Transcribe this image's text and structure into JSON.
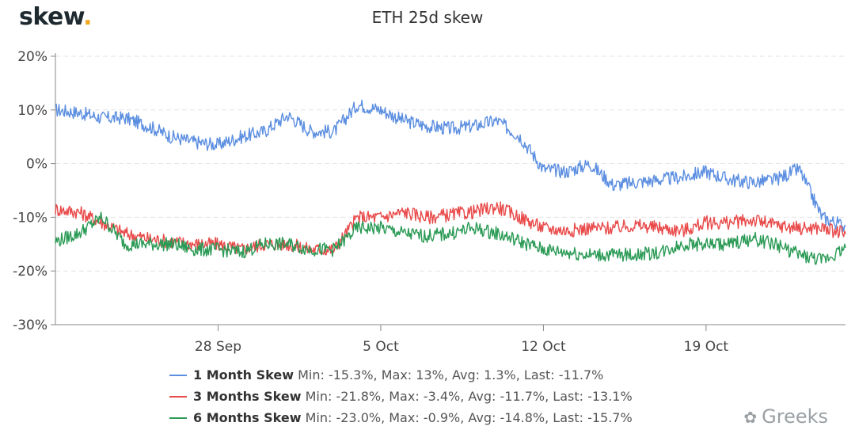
{
  "brand": {
    "name": "skew",
    "dot": "."
  },
  "watermark": {
    "text": "Greeks",
    "icon": "wechat-icon"
  },
  "chart_data": {
    "type": "line",
    "title": "ETH 25d skew",
    "xlabel": "",
    "ylabel": "",
    "ylim": [
      -30,
      20
    ],
    "yticks": [
      20,
      10,
      0,
      -10,
      -20,
      -30
    ],
    "ytick_labels": [
      "20%",
      "10%",
      "0%",
      "-10%",
      "-20%",
      "-30%"
    ],
    "xlim": [
      "2020-09-21",
      "2020-10-25"
    ],
    "xticks": [
      "2020-09-28",
      "2020-10-05",
      "2020-10-12",
      "2020-10-19"
    ],
    "xtick_labels": [
      "28 Sep",
      "5 Oct",
      "12 Oct",
      "19 Oct"
    ],
    "grid": true,
    "legend_position": "bottom",
    "series": [
      {
        "name": "1 Month Skew",
        "stats": "Min: -15.3%, Max: 13%, Avg: 1.3%, Last: -11.7%",
        "color": "#5b8ee0",
        "points": [
          [
            "2020-09-21",
            10
          ],
          [
            "2020-09-22",
            9.5
          ],
          [
            "2020-09-23",
            8.5
          ],
          [
            "2020-09-24",
            8.5
          ],
          [
            "2020-09-25",
            7
          ],
          [
            "2020-09-26",
            5
          ],
          [
            "2020-09-27",
            4
          ],
          [
            "2020-09-28",
            3.5
          ],
          [
            "2020-09-29",
            5
          ],
          [
            "2020-09-30",
            6
          ],
          [
            "2020-10-01",
            9
          ],
          [
            "2020-10-02",
            6
          ],
          [
            "2020-10-03",
            6
          ],
          [
            "2020-10-04",
            11
          ],
          [
            "2020-10-05",
            10
          ],
          [
            "2020-10-06",
            8
          ],
          [
            "2020-10-07",
            7
          ],
          [
            "2020-10-08",
            6.5
          ],
          [
            "2020-10-09",
            7
          ],
          [
            "2020-10-10",
            8
          ],
          [
            "2020-10-11",
            5
          ],
          [
            "2020-10-12",
            -1
          ],
          [
            "2020-10-13",
            -1.5
          ],
          [
            "2020-10-14",
            0
          ],
          [
            "2020-10-15",
            -4
          ],
          [
            "2020-10-16",
            -3.5
          ],
          [
            "2020-10-17",
            -3
          ],
          [
            "2020-10-18",
            -2.5
          ],
          [
            "2020-10-19",
            -1.5
          ],
          [
            "2020-10-20",
            -3
          ],
          [
            "2020-10-21",
            -3.5
          ],
          [
            "2020-10-22",
            -3
          ],
          [
            "2020-10-23",
            -1
          ],
          [
            "2020-10-24",
            -10
          ],
          [
            "2020-10-25",
            -11.7
          ]
        ]
      },
      {
        "name": "3 Months Skew",
        "stats": "Min: -21.8%, Max: -3.4%, Avg: -11.7%, Last: -13.1%",
        "color": "#e94a4a",
        "points": [
          [
            "2020-09-21",
            -8.5
          ],
          [
            "2020-09-22",
            -9
          ],
          [
            "2020-09-23",
            -11
          ],
          [
            "2020-09-24",
            -13
          ],
          [
            "2020-09-25",
            -14
          ],
          [
            "2020-09-26",
            -14.5
          ],
          [
            "2020-09-27",
            -15
          ],
          [
            "2020-09-28",
            -15
          ],
          [
            "2020-09-29",
            -16
          ],
          [
            "2020-09-30",
            -15
          ],
          [
            "2020-10-01",
            -15
          ],
          [
            "2020-10-02",
            -16
          ],
          [
            "2020-10-03",
            -16
          ],
          [
            "2020-10-04",
            -10
          ],
          [
            "2020-10-05",
            -10
          ],
          [
            "2020-10-06",
            -9
          ],
          [
            "2020-10-07",
            -10
          ],
          [
            "2020-10-08",
            -9.5
          ],
          [
            "2020-10-09",
            -9
          ],
          [
            "2020-10-10",
            -8
          ],
          [
            "2020-10-11",
            -10
          ],
          [
            "2020-10-12",
            -12
          ],
          [
            "2020-10-13",
            -12.5
          ],
          [
            "2020-10-14",
            -12
          ],
          [
            "2020-10-15",
            -12
          ],
          [
            "2020-10-16",
            -11.5
          ],
          [
            "2020-10-17",
            -12
          ],
          [
            "2020-10-18",
            -12.5
          ],
          [
            "2020-10-19",
            -11
          ],
          [
            "2020-10-20",
            -11
          ],
          [
            "2020-10-21",
            -10.5
          ],
          [
            "2020-10-22",
            -11.5
          ],
          [
            "2020-10-23",
            -12
          ],
          [
            "2020-10-24",
            -12
          ],
          [
            "2020-10-25",
            -13.1
          ]
        ]
      },
      {
        "name": "6 Months Skew",
        "stats": "Min: -23.0%, Max: -0.9%, Avg: -14.8%, Last: -15.7%",
        "color": "#2a9a55",
        "points": [
          [
            "2020-09-21",
            -14.5
          ],
          [
            "2020-09-22",
            -13
          ],
          [
            "2020-09-23",
            -10
          ],
          [
            "2020-09-24",
            -15
          ],
          [
            "2020-09-25",
            -15
          ],
          [
            "2020-09-26",
            -15
          ],
          [
            "2020-09-27",
            -16
          ],
          [
            "2020-09-28",
            -16
          ],
          [
            "2020-09-29",
            -16.5
          ],
          [
            "2020-09-30",
            -15
          ],
          [
            "2020-10-01",
            -15
          ],
          [
            "2020-10-02",
            -16
          ],
          [
            "2020-10-03",
            -16
          ],
          [
            "2020-10-04",
            -12
          ],
          [
            "2020-10-05",
            -12
          ],
          [
            "2020-10-06",
            -13
          ],
          [
            "2020-10-07",
            -13.5
          ],
          [
            "2020-10-08",
            -13
          ],
          [
            "2020-10-09",
            -12
          ],
          [
            "2020-10-10",
            -13
          ],
          [
            "2020-10-11",
            -14.5
          ],
          [
            "2020-10-12",
            -16
          ],
          [
            "2020-10-13",
            -16.5
          ],
          [
            "2020-10-14",
            -17
          ],
          [
            "2020-10-15",
            -17
          ],
          [
            "2020-10-16",
            -17
          ],
          [
            "2020-10-17",
            -16.5
          ],
          [
            "2020-10-18",
            -15
          ],
          [
            "2020-10-19",
            -15
          ],
          [
            "2020-10-20",
            -15
          ],
          [
            "2020-10-21",
            -14
          ],
          [
            "2020-10-22",
            -15
          ],
          [
            "2020-10-23",
            -17
          ],
          [
            "2020-10-24",
            -18
          ],
          [
            "2020-10-25",
            -15.7
          ]
        ]
      }
    ]
  }
}
